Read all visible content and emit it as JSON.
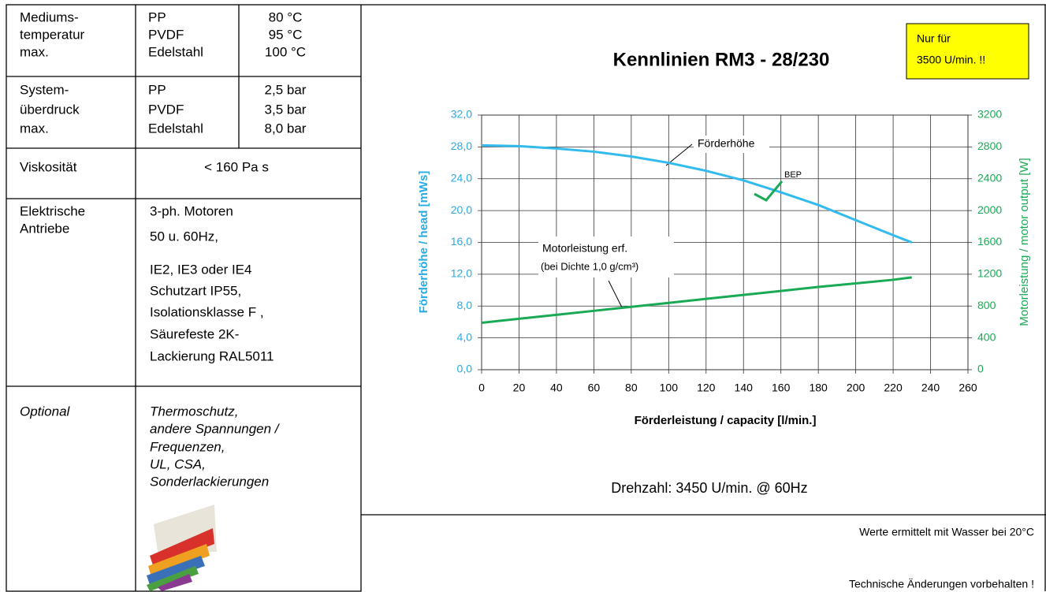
{
  "spec_table": {
    "rows": [
      {
        "label": [
          "Mediums-",
          "temperatur",
          "max."
        ],
        "materials": [
          "PP",
          "PVDF",
          "Edelstahl"
        ],
        "values": [
          "80 °C",
          "95 °C",
          "100 °C"
        ]
      },
      {
        "label": [
          "System-",
          "überdruck",
          "max."
        ],
        "materials": [
          "PP",
          "PVDF",
          "Edelstahl"
        ],
        "values": [
          "2,5 bar",
          "3,5 bar",
          "8,0 bar"
        ]
      },
      {
        "label": [
          "Viskosität"
        ],
        "text": [
          "< 160 Pa s"
        ]
      },
      {
        "label": [
          "Elektrische",
          "Antriebe"
        ],
        "text": [
          "3-ph. Motoren",
          "50 u. 60Hz,",
          "IE2, IE3 oder IE4",
          "Schutzart IP55,",
          "Isolationsklasse F ,",
          "Säurefeste 2K-",
          "Lackierung RAL5011"
        ]
      },
      {
        "label": [
          "Optional"
        ],
        "text": [
          "Thermoschutz,",
          "andere Spannungen /",
          "Frequenzen,",
          "UL, CSA,",
          "Sonderlackierungen"
        ]
      }
    ]
  },
  "note_box": [
    "Nur für",
    "3500 U/min.  !!"
  ],
  "speed_text": "Drehzahl:  3450 U/min. @ 60Hz",
  "footer": [
    "Werte ermittelt mit Wasser bei 20°C",
    "Technische Änderungen vorbehalten !"
  ],
  "chart_data": {
    "type": "line",
    "title": "Kennlinien  RM3 - 28/230",
    "x_label": "Förderleistung / capacity  [l/min.]",
    "y_label": "Förderhöhe / head  [mWs]",
    "y2_label": "Motorleistung / motor output [W]",
    "annotations": [
      "Förderhöhe",
      "Motorleistung erf.",
      "(bei Dichte 1,0 g/cm³)",
      "BEP"
    ],
    "x": [
      0,
      20,
      40,
      60,
      80,
      100,
      120,
      140,
      160,
      180,
      200,
      220,
      230
    ],
    "series": [
      {
        "name": "Förderhöhe",
        "color": "#33bbee",
        "values": [
          28.2,
          28.1,
          27.8,
          27.4,
          26.8,
          26.0,
          25.0,
          23.8,
          22.3,
          20.7,
          18.8,
          16.9,
          16.0
        ]
      },
      {
        "name": "Motorleistung erf.",
        "color": "#1aaa55",
        "axis": "y2",
        "values": [
          590,
          640,
          690,
          740,
          790,
          840,
          890,
          940,
          990,
          1040,
          1085,
          1130,
          1160
        ]
      }
    ],
    "xlim": [
      0,
      260
    ],
    "xticks": [
      0,
      20,
      40,
      60,
      80,
      100,
      120,
      140,
      160,
      180,
      200,
      220,
      240,
      260
    ],
    "ylim": [
      0,
      32
    ],
    "yticks": [
      {
        "value": 0,
        "label": "0,0"
      },
      {
        "value": 4,
        "label": "4,0"
      },
      {
        "value": 8,
        "label": "8,0"
      },
      {
        "value": 12,
        "label": "12,0"
      },
      {
        "value": 16,
        "label": "16,0"
      },
      {
        "value": 20,
        "label": "20,0"
      },
      {
        "value": 24,
        "label": "24,0"
      },
      {
        "value": 28,
        "label": "28,0"
      },
      {
        "value": 32,
        "label": "32,0"
      }
    ],
    "y2lim": [
      0,
      3200
    ],
    "y2ticks": [
      0,
      400,
      800,
      1200,
      1600,
      2000,
      2400,
      2800,
      3200
    ],
    "grid": true
  }
}
